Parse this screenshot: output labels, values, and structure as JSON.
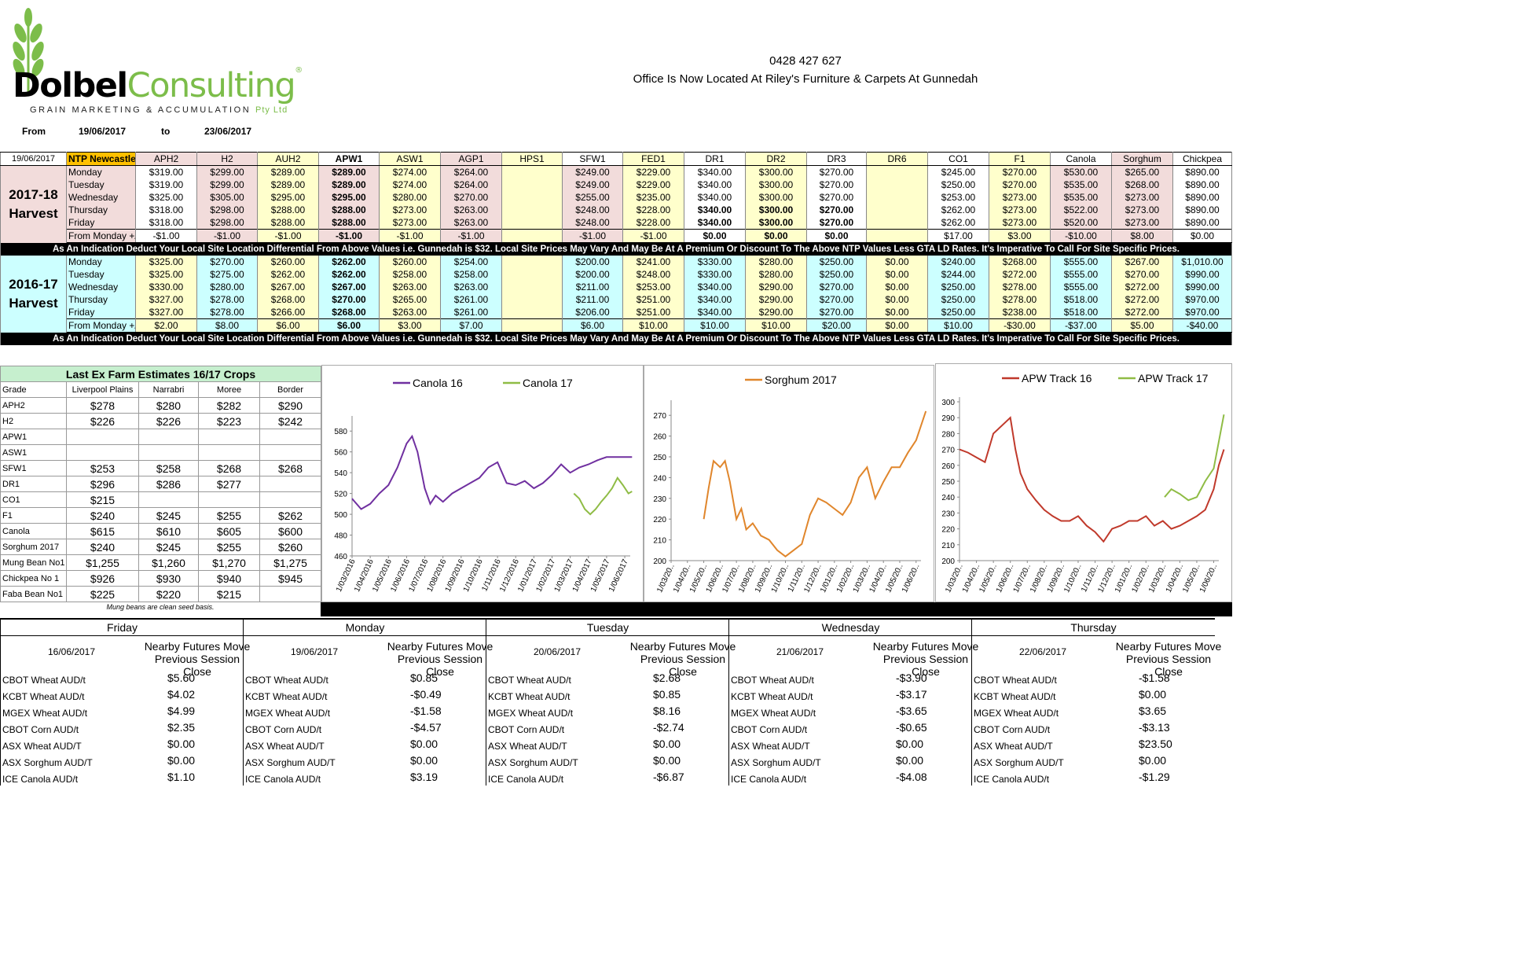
{
  "logo": {
    "word1": "Dolbel",
    "word2": "Consulting",
    "reg": "®",
    "sub1": "GRAIN MARKETING & ACCUMULATION",
    "sub2": "Pty Ltd"
  },
  "contact": {
    "phone": "0428 427 627",
    "office": "Office Is Now Located At Riley's Furniture & Carpets At Gunnedah"
  },
  "date_range": {
    "from_label": "From",
    "from": "19/06/2017",
    "to_label": "to",
    "to": "23/06/2017"
  },
  "colors": {
    "yellow": "#ffffcc",
    "pink": "#f2dcdb",
    "cyan": "#ccffff",
    "ntp_orange": "#ffc000",
    "green_header": "#c6efce",
    "canola16": "#7030a0",
    "canola17": "#8fbc45",
    "sorghum": "#e0862c",
    "apw16": "#c0392b",
    "apw17": "#8fbc45"
  },
  "price_table": {
    "date": "19/06/2017",
    "ntp": "NTP Newcastle",
    "grades": [
      "APH2",
      "H2",
      "AUH2",
      "APW1",
      "ASW1",
      "AGP1",
      "HPS1",
      "SFW1",
      "FED1",
      "DR1",
      "DR2",
      "DR3",
      "DR6",
      "CO1",
      "F1",
      "Canola",
      "Sorghum",
      "Chickpea"
    ],
    "note": "As An Indication Deduct Your Local Site Location Differential From Above Values i.e. Gunnedah is $32. Local Site Prices May Vary And May Be At A Premium Or Discount To The Above NTP Values Less GTA LD Rates. It's Imperative To Call For Site Specific Prices.",
    "blocks": [
      {
        "harvest_line1": "2017-18",
        "harvest_line2": "Harvest",
        "rows": [
          {
            "day": "Monday",
            "v": [
              "$319.00",
              "$299.00",
              "$289.00",
              "$289.00",
              "$274.00",
              "$264.00",
              "",
              "$249.00",
              "$229.00",
              "$340.00",
              "$300.00",
              "$270.00",
              "",
              "$245.00",
              "$270.00",
              "$530.00",
              "$265.00",
              "$890.00"
            ]
          },
          {
            "day": "Tuesday",
            "v": [
              "$319.00",
              "$299.00",
              "$289.00",
              "$289.00",
              "$274.00",
              "$264.00",
              "",
              "$249.00",
              "$229.00",
              "$340.00",
              "$300.00",
              "$270.00",
              "",
              "$250.00",
              "$270.00",
              "$535.00",
              "$268.00",
              "$890.00"
            ]
          },
          {
            "day": "Wednesday",
            "v": [
              "$325.00",
              "$305.00",
              "$295.00",
              "$295.00",
              "$280.00",
              "$270.00",
              "",
              "$255.00",
              "$235.00",
              "$340.00",
              "$300.00",
              "$270.00",
              "",
              "$253.00",
              "$273.00",
              "$535.00",
              "$273.00",
              "$890.00"
            ]
          },
          {
            "day": "Thursday",
            "v": [
              "$318.00",
              "$298.00",
              "$288.00",
              "$288.00",
              "$273.00",
              "$263.00",
              "",
              "$248.00",
              "$228.00",
              "$340.00",
              "$300.00",
              "$270.00",
              "",
              "$262.00",
              "$273.00",
              "$522.00",
              "$273.00",
              "$890.00"
            ]
          },
          {
            "day": "Friday",
            "v": [
              "$318.00",
              "$298.00",
              "$288.00",
              "$288.00",
              "$273.00",
              "$263.00",
              "",
              "$248.00",
              "$228.00",
              "$340.00",
              "$300.00",
              "$270.00",
              "",
              "$262.00",
              "$273.00",
              "$520.00",
              "$273.00",
              "$890.00"
            ]
          },
          {
            "day": "From Monday +/-",
            "v": [
              "-$1.00",
              "-$1.00",
              "-$1.00",
              "-$1.00",
              "-$1.00",
              "-$1.00",
              "",
              "-$1.00",
              "-$1.00",
              "$0.00",
              "$0.00",
              "$0.00",
              "",
              "$17.00",
              "$3.00",
              "-$10.00",
              "$8.00",
              "$0.00"
            ]
          }
        ]
      },
      {
        "harvest_line1": "2016-17",
        "harvest_line2": "Harvest",
        "rows": [
          {
            "day": "Monday",
            "v": [
              "$325.00",
              "$270.00",
              "$260.00",
              "$262.00",
              "$260.00",
              "$254.00",
              "",
              "$200.00",
              "$241.00",
              "$330.00",
              "$280.00",
              "$250.00",
              "$0.00",
              "$240.00",
              "$268.00",
              "$555.00",
              "$267.00",
              "$1,010.00"
            ]
          },
          {
            "day": "Tuesday",
            "v": [
              "$325.00",
              "$275.00",
              "$262.00",
              "$262.00",
              "$258.00",
              "$258.00",
              "",
              "$200.00",
              "$248.00",
              "$330.00",
              "$280.00",
              "$250.00",
              "$0.00",
              "$244.00",
              "$272.00",
              "$555.00",
              "$270.00",
              "$990.00"
            ]
          },
          {
            "day": "Wednesday",
            "v": [
              "$330.00",
              "$280.00",
              "$267.00",
              "$267.00",
              "$263.00",
              "$263.00",
              "",
              "$211.00",
              "$253.00",
              "$340.00",
              "$290.00",
              "$270.00",
              "$0.00",
              "$250.00",
              "$278.00",
              "$555.00",
              "$272.00",
              "$990.00"
            ]
          },
          {
            "day": "Thursday",
            "v": [
              "$327.00",
              "$278.00",
              "$268.00",
              "$270.00",
              "$265.00",
              "$261.00",
              "",
              "$211.00",
              "$251.00",
              "$340.00",
              "$290.00",
              "$270.00",
              "$0.00",
              "$250.00",
              "$278.00",
              "$518.00",
              "$272.00",
              "$970.00"
            ]
          },
          {
            "day": "Friday",
            "v": [
              "$327.00",
              "$278.00",
              "$266.00",
              "$268.00",
              "$263.00",
              "$261.00",
              "",
              "$206.00",
              "$251.00",
              "$340.00",
              "$290.00",
              "$270.00",
              "$0.00",
              "$250.00",
              "$238.00",
              "$518.00",
              "$272.00",
              "$970.00"
            ]
          },
          {
            "day": "From Monday +/-",
            "v": [
              "$2.00",
              "$8.00",
              "$6.00",
              "$6.00",
              "$3.00",
              "$7.00",
              "",
              "$6.00",
              "$10.00",
              "$10.00",
              "$10.00",
              "$20.00",
              "$0.00",
              "$10.00",
              "-$30.00",
              "-$37.00",
              "$5.00",
              "-$40.00"
            ]
          }
        ]
      }
    ]
  },
  "estimates": {
    "title": "Last Ex Farm Estimates 16/17 Crops",
    "headers": [
      "Grade",
      "Liverpool Plains",
      "Narrabri",
      "Moree",
      "Border"
    ],
    "rows": [
      [
        "APH2",
        "$278",
        "$280",
        "$282",
        "$290"
      ],
      [
        "H2",
        "$226",
        "$226",
        "$223",
        "$242"
      ],
      [
        "APW1",
        "",
        "",
        "",
        ""
      ],
      [
        "ASW1",
        "",
        "",
        "",
        ""
      ],
      [
        "SFW1",
        "$253",
        "$258",
        "$268",
        "$268"
      ],
      [
        "DR1",
        "$296",
        "$286",
        "$277",
        ""
      ],
      [
        "CO1",
        "$215",
        "",
        "",
        ""
      ],
      [
        "F1",
        "$240",
        "$245",
        "$255",
        "$262"
      ],
      [
        "Canola",
        "$615",
        "$610",
        "$605",
        "$600"
      ],
      [
        "Sorghum 2017",
        "$240",
        "$245",
        "$255",
        "$260"
      ],
      [
        "Mung Bean No1",
        "$1,255",
        "$1,260",
        "$1,270",
        "$1,275"
      ],
      [
        "Chickpea No 1",
        "$926",
        "$930",
        "$940",
        "$945"
      ],
      [
        "Faba Bean No1",
        "$225",
        "$220",
        "$215",
        ""
      ]
    ],
    "note": "Mung beans are clean seed basis."
  },
  "chart_data": [
    {
      "type": "line",
      "title": "",
      "ylim": [
        460,
        590
      ],
      "yticks": [
        460,
        480,
        500,
        520,
        540,
        560,
        580
      ],
      "x_tick_labels": [
        "1/03/2016",
        "1/04/2016",
        "1/05/2016",
        "1/06/2016",
        "1/07/2016",
        "1/08/2016",
        "1/09/2016",
        "1/10/2016",
        "1/11/2016",
        "1/12/2016",
        "1/01/2017",
        "1/02/2017",
        "1/03/2017",
        "1/04/2017",
        "1/05/2017",
        "1/06/2017"
      ],
      "series": [
        {
          "name": "Canola 16",
          "x": [
            0,
            0.5,
            1,
            1.5,
            2,
            2.5,
            3,
            3.3,
            3.6,
            4,
            4.3,
            4.6,
            5,
            5.5,
            6,
            6.5,
            7,
            7.5,
            8,
            8.5,
            9,
            9.5,
            10,
            10.5,
            11,
            11.5,
            12,
            12.5,
            13,
            13.5,
            14,
            14.5,
            15,
            15.4
          ],
          "values": [
            515,
            505,
            510,
            520,
            528,
            545,
            568,
            575,
            560,
            525,
            510,
            518,
            512,
            520,
            525,
            530,
            535,
            545,
            550,
            530,
            528,
            532,
            525,
            530,
            538,
            548,
            540,
            545,
            548,
            552,
            555,
            555,
            555,
            555
          ]
        },
        {
          "name": "Canola 17",
          "x": [
            12.2,
            12.5,
            12.8,
            13.1,
            13.4,
            13.7,
            14,
            14.3,
            14.6,
            14.9,
            15.2,
            15.4
          ],
          "values": [
            520,
            515,
            505,
            500,
            505,
            512,
            518,
            525,
            535,
            528,
            520,
            522
          ]
        }
      ]
    },
    {
      "type": "line",
      "title": "",
      "ylim": [
        200,
        275
      ],
      "yticks": [
        200,
        210,
        220,
        230,
        240,
        250,
        260,
        270
      ],
      "x_tick_labels": [
        "1/03/20..",
        "1/04/20..",
        "1/05/20..",
        "1/06/20..",
        "1/07/20..",
        "1/08/20..",
        "1/09/20..",
        "1/10/20..",
        "1/11/20..",
        "1/12/20..",
        "1/01/20..",
        "1/02/20..",
        "1/03/20..",
        "1/04/20..",
        "1/05/20..",
        "1/06/20.."
      ],
      "series": [
        {
          "name": "Sorghum 2017",
          "x": [
            2,
            2.3,
            2.6,
            3,
            3.3,
            3.6,
            4,
            4.3,
            4.6,
            5,
            5.5,
            6,
            6.5,
            7,
            7.5,
            8,
            8.5,
            9,
            9.5,
            10,
            10.5,
            11,
            11.5,
            12,
            12.5,
            13,
            13.5,
            14,
            14.5,
            15,
            15.3,
            15.6
          ],
          "values": [
            220,
            235,
            248,
            245,
            248,
            238,
            220,
            225,
            215,
            218,
            212,
            210,
            205,
            202,
            205,
            208,
            222,
            230,
            228,
            225,
            222,
            228,
            240,
            245,
            230,
            238,
            245,
            245,
            252,
            258,
            265,
            272
          ]
        }
      ]
    },
    {
      "type": "line",
      "title": "",
      "ylim": [
        200,
        300
      ],
      "yticks": [
        200,
        210,
        220,
        230,
        240,
        250,
        260,
        270,
        280,
        290,
        300
      ],
      "x_tick_labels": [
        "1/03/20..",
        "1/04/20..",
        "1/05/20..",
        "1/06/20..",
        "1/07/20..",
        "1/08/20..",
        "1/09/20..",
        "1/10/20..",
        "1/11/20..",
        "1/12/20..",
        "1/01/20..",
        "1/02/20..",
        "1/03/20..",
        "1/04/20..",
        "1/05/20..",
        "1/06/20.."
      ],
      "series": [
        {
          "name": "APW Track 16",
          "x": [
            0,
            0.5,
            1,
            1.5,
            2,
            2.5,
            3,
            3.3,
            3.6,
            4,
            4.5,
            5,
            5.5,
            6,
            6.5,
            7,
            7.5,
            8,
            8.5,
            9,
            9.5,
            10,
            10.5,
            11,
            11.5,
            12,
            12.5,
            13,
            13.5,
            14,
            14.5,
            15,
            15.3,
            15.6
          ],
          "values": [
            270,
            268,
            265,
            262,
            280,
            285,
            290,
            270,
            255,
            245,
            238,
            232,
            228,
            225,
            225,
            228,
            222,
            218,
            212,
            220,
            222,
            225,
            225,
            228,
            222,
            225,
            220,
            222,
            225,
            228,
            232,
            245,
            260,
            270
          ]
        },
        {
          "name": "APW Track 17",
          "x": [
            12.1,
            12.5,
            13,
            13.5,
            14,
            14.5,
            15,
            15.3,
            15.6
          ],
          "values": [
            240,
            245,
            242,
            238,
            240,
            250,
            258,
            275,
            292
          ]
        }
      ]
    }
  ],
  "futures": {
    "header1": "Nearby Futures Move",
    "header2": "Previous Session Close",
    "labels": [
      "CBOT Wheat AUD/t",
      "KCBT Wheat AUD/t",
      "MGEX Wheat AUD/t",
      "CBOT Corn AUD/t",
      "ASX Wheat AUD/T",
      "ASX Sorghum AUD/T",
      "ICE Canola AUD/t"
    ],
    "days": [
      {
        "day": "Friday",
        "date": "16/06/2017",
        "values": [
          "$5.60",
          "$4.02",
          "$4.99",
          "$2.35",
          "$0.00",
          "$0.00",
          "$1.10"
        ]
      },
      {
        "day": "Monday",
        "date": "19/06/2017",
        "values": [
          "$0.85",
          "-$0.49",
          "-$1.58",
          "-$4.57",
          "$0.00",
          "$0.00",
          "$3.19"
        ]
      },
      {
        "day": "Tuesday",
        "date": "20/06/2017",
        "values": [
          "$2.68",
          "$0.85",
          "$8.16",
          "-$2.74",
          "$0.00",
          "$0.00",
          "-$6.87"
        ]
      },
      {
        "day": "Wednesday",
        "date": "21/06/2017",
        "values": [
          "-$3.90",
          "-$3.17",
          "-$3.65",
          "-$0.65",
          "$0.00",
          "$0.00",
          "-$4.08"
        ]
      },
      {
        "day": "Thursday",
        "date": "22/06/2017",
        "values": [
          "-$1.58",
          "$0.00",
          "$3.65",
          "-$3.13",
          "$23.50",
          "$0.00",
          "-$1.29"
        ]
      }
    ]
  }
}
